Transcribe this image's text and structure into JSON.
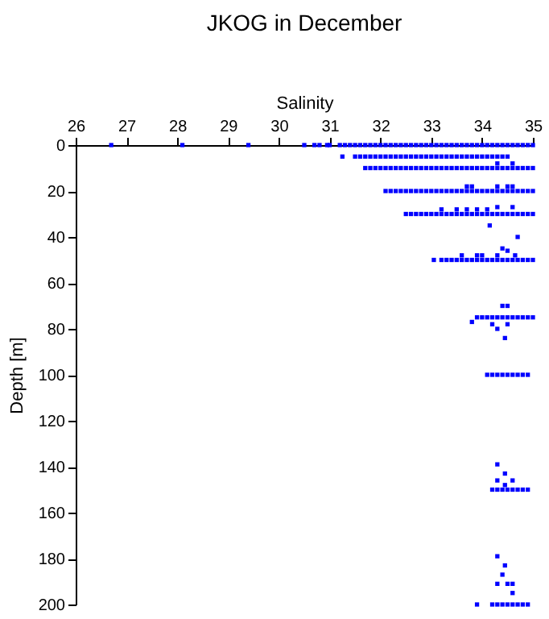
{
  "chart_data": {
    "type": "scatter",
    "title": "JKOG in December",
    "xlabel": "Salinity",
    "ylabel": "Depth [m]",
    "xlim": [
      26,
      35
    ],
    "xticks": [
      26,
      27,
      28,
      29,
      30,
      31,
      32,
      33,
      34,
      35
    ],
    "ylim": [
      200,
      0
    ],
    "yticks": [
      0,
      20,
      40,
      60,
      80,
      100,
      120,
      140,
      160,
      180,
      200
    ],
    "grid": false,
    "marker": "square",
    "series": [
      {
        "color": "#0000ff",
        "x": [
          26.7,
          28.1,
          29.4,
          30.5,
          30.7,
          30.8,
          30.95,
          31.0,
          31.2,
          31.3,
          31.4,
          31.5,
          31.6,
          31.7,
          31.8,
          31.9,
          32.0,
          32.1,
          32.2,
          32.3,
          32.4,
          32.5,
          32.6,
          32.7,
          32.8,
          32.9,
          33.0,
          33.1,
          33.2,
          33.3,
          33.4,
          33.5,
          33.6,
          33.7,
          33.8,
          33.9,
          34.0,
          34.1,
          34.2,
          34.3,
          34.4,
          34.5,
          34.6,
          34.7,
          34.8,
          34.9,
          35.0
        ],
        "values": [
          0,
          0,
          0,
          0,
          0,
          0,
          0,
          0,
          0,
          0,
          0,
          0,
          0,
          0,
          0,
          0,
          0,
          0,
          0,
          0,
          0,
          0,
          0,
          0,
          0,
          0,
          0,
          0,
          0,
          0,
          0,
          0,
          0,
          0,
          0,
          0,
          0,
          0,
          0,
          0,
          0,
          0,
          0,
          0,
          0,
          0,
          0
        ]
      },
      {
        "color": "#0000ff",
        "x": [
          31.25,
          31.5,
          31.6,
          31.7,
          31.8,
          31.9,
          32.0,
          32.1,
          32.2,
          32.3,
          32.4,
          32.5,
          32.6,
          32.7,
          32.8,
          32.9,
          33.0,
          33.1,
          33.2,
          33.3,
          33.4,
          33.5,
          33.6,
          33.7,
          33.8,
          33.9,
          34.0,
          34.1,
          34.2,
          34.3,
          34.4,
          34.5
        ],
        "values": [
          5,
          5,
          5,
          5,
          5,
          5,
          5,
          5,
          5,
          5,
          5,
          5,
          5,
          5,
          5,
          5,
          5,
          5,
          5,
          5,
          5,
          5,
          5,
          5,
          5,
          5,
          5,
          5,
          5,
          5,
          5,
          5
        ]
      },
      {
        "color": "#0000ff",
        "x": [
          31.7,
          31.8,
          31.9,
          32.0,
          32.1,
          32.2,
          32.3,
          32.4,
          32.5,
          32.6,
          32.7,
          32.8,
          32.9,
          33.0,
          33.1,
          33.2,
          33.3,
          33.4,
          33.5,
          33.6,
          33.7,
          33.8,
          33.9,
          34.0,
          34.1,
          34.2,
          34.3,
          34.4,
          34.5,
          34.6,
          34.7,
          34.8,
          34.9,
          35.0
        ],
        "values": [
          10,
          10,
          10,
          10,
          10,
          10,
          10,
          10,
          10,
          10,
          10,
          10,
          10,
          10,
          10,
          10,
          10,
          10,
          10,
          10,
          10,
          10,
          10,
          10,
          10,
          10,
          10,
          10,
          10,
          10,
          10,
          10,
          10,
          10
        ]
      },
      {
        "color": "#0000ff",
        "x": [
          32.1,
          32.2,
          32.3,
          32.4,
          32.5,
          32.6,
          32.7,
          32.8,
          32.9,
          33.0,
          33.1,
          33.2,
          33.3,
          33.4,
          33.5,
          33.6,
          33.7,
          33.8,
          33.9,
          34.0,
          34.1,
          34.2,
          34.3,
          34.4,
          34.5,
          34.6,
          34.7,
          34.8,
          34.9,
          35.0
        ],
        "values": [
          20,
          20,
          20,
          20,
          20,
          20,
          20,
          20,
          20,
          20,
          20,
          20,
          20,
          20,
          20,
          20,
          20,
          20,
          20,
          20,
          20,
          20,
          20,
          20,
          20,
          20,
          20,
          20,
          20,
          20
        ]
      },
      {
        "color": "#0000ff",
        "x": [
          32.5,
          32.6,
          32.7,
          32.8,
          32.9,
          33.0,
          33.1,
          33.2,
          33.3,
          33.4,
          33.5,
          33.6,
          33.7,
          33.8,
          33.9,
          34.0,
          34.1,
          34.2,
          34.3,
          34.4,
          34.5,
          34.6,
          34.7,
          34.8,
          34.9,
          35.0
        ],
        "values": [
          30,
          30,
          30,
          30,
          30,
          30,
          30,
          30,
          30,
          30,
          30,
          30,
          30,
          30,
          30,
          30,
          30,
          30,
          30,
          30,
          30,
          30,
          30,
          30,
          30,
          30
        ]
      },
      {
        "color": "#0000ff",
        "x": [
          33.05,
          33.2,
          33.3,
          33.4,
          33.5,
          33.6,
          33.7,
          33.8,
          33.9,
          34.0,
          34.1,
          34.2,
          34.3,
          34.4,
          34.5,
          34.6,
          34.7,
          34.8,
          34.9,
          35.0
        ],
        "values": [
          50,
          50,
          50,
          50,
          50,
          50,
          50,
          50,
          50,
          50,
          50,
          50,
          50,
          50,
          50,
          50,
          50,
          50,
          50,
          50
        ]
      },
      {
        "color": "#0000ff",
        "x": [
          33.9,
          34.0,
          34.1,
          34.2,
          34.3,
          34.4,
          34.5,
          34.6,
          34.7,
          34.8,
          34.9,
          35.0
        ],
        "values": [
          75,
          75,
          75,
          75,
          75,
          75,
          75,
          75,
          75,
          75,
          75,
          75
        ]
      },
      {
        "color": "#0000ff",
        "x": [
          34.1,
          34.2,
          34.3,
          34.4,
          34.5,
          34.6,
          34.7,
          34.8,
          34.9
        ],
        "values": [
          100,
          100,
          100,
          100,
          100,
          100,
          100,
          100,
          100
        ]
      },
      {
        "color": "#0000ff",
        "x": [
          34.2,
          34.3,
          34.4,
          34.5,
          34.6,
          34.7,
          34.8,
          34.9
        ],
        "values": [
          150,
          150,
          150,
          150,
          150,
          150,
          150,
          150
        ]
      },
      {
        "color": "#0000ff",
        "x": [
          33.9,
          34.2,
          34.3,
          34.4,
          34.5,
          34.6,
          34.7,
          34.8,
          34.9
        ],
        "values": [
          200,
          200,
          200,
          200,
          200,
          200,
          200,
          200,
          200
        ]
      },
      {
        "color": "#0000ff",
        "x": [
          34.3,
          34.6,
          33.7,
          33.8,
          34.3,
          34.5,
          34.6,
          33.2,
          33.5,
          33.7,
          33.9,
          34.1,
          34.3,
          34.6,
          34.15,
          34.7,
          33.6,
          33.9,
          34.0,
          34.3,
          34.4,
          34.5,
          34.65,
          34.4,
          34.5,
          33.8,
          34.2,
          34.5,
          34.3,
          34.45,
          34.3,
          34.45,
          34.3,
          34.6,
          34.45,
          34.3,
          34.45,
          34.4,
          34.3,
          34.5,
          34.6,
          34.6
        ],
        "values": [
          8,
          8,
          18,
          18,
          18,
          18,
          18,
          28,
          28,
          28,
          28,
          28,
          27,
          27,
          35,
          40,
          48,
          48,
          48,
          48,
          45,
          46,
          48,
          70,
          70,
          77,
          78,
          78,
          80,
          84,
          139,
          143,
          146,
          146,
          148,
          179,
          183,
          187,
          191,
          191,
          191,
          195
        ]
      }
    ]
  }
}
